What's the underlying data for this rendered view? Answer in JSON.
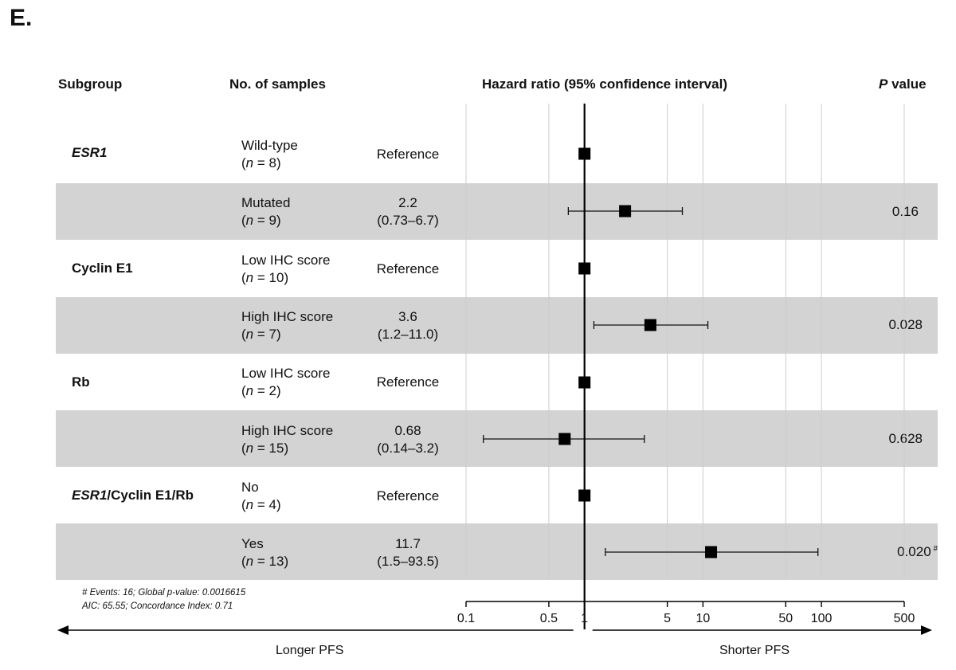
{
  "panel_label": "E.",
  "headers": {
    "subgroup": "Subgroup",
    "samples": "No. of samples",
    "hr": "Hazard ratio (95% confidence interval)",
    "p_italic": "P",
    "p_rest": " value"
  },
  "groups": [
    {
      "name_italic": "ESR1",
      "name_rest": ""
    },
    {
      "name_italic": "",
      "name_rest": "Cyclin E1"
    },
    {
      "name_italic": "",
      "name_rest": "Rb"
    },
    {
      "name_italic": "ESR1",
      "name_rest": "/Cyclin E1/Rb"
    }
  ],
  "rows": [
    {
      "label": "Wild-type",
      "n": "8",
      "estimate": "Reference",
      "ci": "",
      "p": "",
      "p_mark": ""
    },
    {
      "label": "Mutated",
      "n": "9",
      "estimate": "2.2",
      "ci": "(0.73–6.7)",
      "p": "0.16",
      "p_mark": ""
    },
    {
      "label": "Low IHC score",
      "n": "10",
      "estimate": "Reference",
      "ci": "",
      "p": "",
      "p_mark": ""
    },
    {
      "label": "High IHC score",
      "n": "7",
      "estimate": "3.6",
      "ci": "(1.2–11.0)",
      "p": "0.028",
      "p_mark": ""
    },
    {
      "label": "Low IHC score",
      "n": "2",
      "estimate": "Reference",
      "ci": "",
      "p": "",
      "p_mark": ""
    },
    {
      "label": "High IHC score",
      "n": "15",
      "estimate": "0.68",
      "ci": "(0.14–3.2)",
      "p": "0.628",
      "p_mark": ""
    },
    {
      "label": "No",
      "n": "4",
      "estimate": "Reference",
      "ci": "",
      "p": "",
      "p_mark": ""
    },
    {
      "label": "Yes",
      "n": "13",
      "estimate": "11.7",
      "ci": "(1.5–93.5)",
      "p": "0.020",
      "p_mark": "#"
    }
  ],
  "footnote": {
    "line1": "# Events: 16; Global p-value: 0.0016615",
    "line2": "AIC: 65.55; Concordance Index: 0.71"
  },
  "direction": {
    "left": "Longer PFS",
    "right": "Shorter PFS"
  },
  "chart_data": {
    "type": "forest",
    "x_scale": "log",
    "xlim": [
      0.1,
      500
    ],
    "reference_line": 1,
    "x_ticks": [
      0.1,
      0.5,
      1,
      5,
      10,
      50,
      100,
      500
    ],
    "x_tick_labels": [
      "0.1",
      "0.5",
      "1",
      "5",
      "10",
      "50",
      "100",
      "500"
    ],
    "grid": true,
    "points": [
      {
        "hr": 1,
        "lo": null,
        "hi": null
      },
      {
        "hr": 2.2,
        "lo": 0.73,
        "hi": 6.7
      },
      {
        "hr": 1,
        "lo": null,
        "hi": null
      },
      {
        "hr": 3.6,
        "lo": 1.2,
        "hi": 11.0
      },
      {
        "hr": 1,
        "lo": null,
        "hi": null
      },
      {
        "hr": 0.68,
        "lo": 0.14,
        "hi": 3.2
      },
      {
        "hr": 1,
        "lo": null,
        "hi": null
      },
      {
        "hr": 11.7,
        "lo": 1.5,
        "hi": 93.5
      }
    ]
  }
}
